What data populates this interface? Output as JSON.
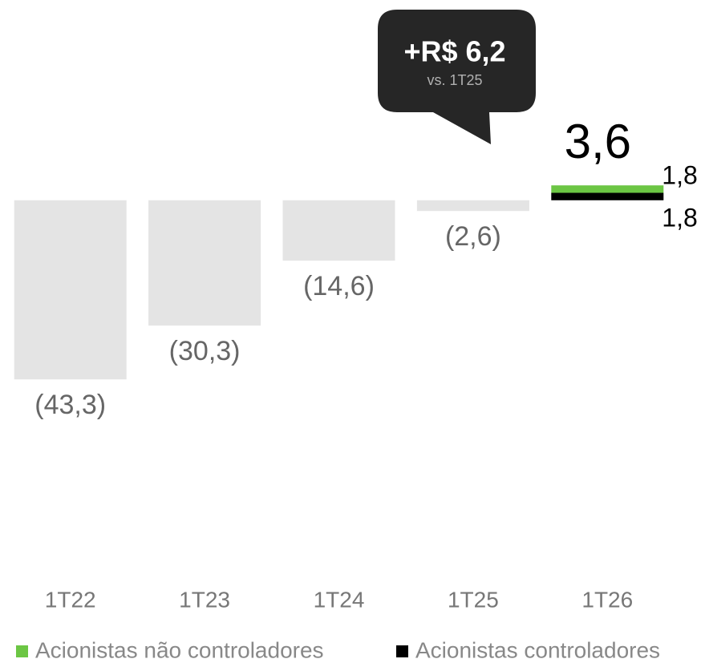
{
  "chart_data": {
    "type": "bar",
    "categories": [
      "1T22",
      "1T23",
      "1T24",
      "1T25",
      "1T26"
    ],
    "values": [
      -43.3,
      -30.3,
      -14.6,
      -2.6,
      null
    ],
    "value_labels": [
      "(43,3)",
      "(30,3)",
      "(14,6)",
      "(2,6)",
      null
    ],
    "color": "#e4e4e4",
    "series": [
      {
        "name": "Acionistas controladores",
        "color": "#000000",
        "values": [
          null,
          null,
          null,
          null,
          1.8
        ],
        "value_labels": [
          null,
          null,
          null,
          null,
          "1,8"
        ]
      },
      {
        "name": "Acionistas não controladores",
        "color": "#6cc644",
        "values": [
          null,
          null,
          null,
          null,
          1.8
        ],
        "value_labels": [
          null,
          null,
          null,
          null,
          "1,8"
        ]
      }
    ],
    "total_label": "3,6",
    "callout": {
      "text": "+R$ 6,2",
      "subtext": "vs. 1T25"
    },
    "ylim": [
      -45,
      5
    ]
  }
}
